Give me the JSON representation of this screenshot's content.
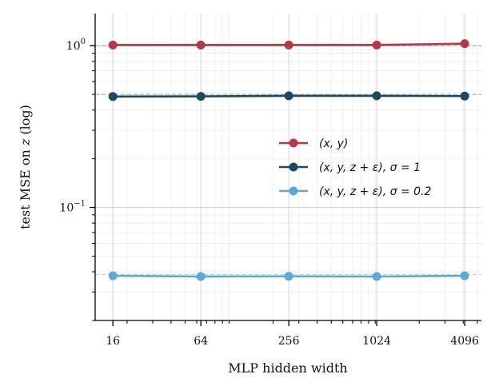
{
  "chart_data": {
    "type": "line",
    "title": "",
    "xlabel": "MLP hidden width",
    "ylabel": "test MSE on z (log)",
    "ylabel_parts": {
      "before": "test MSE on ",
      "var": "z",
      "after": " (log)"
    },
    "x_scale": "log",
    "y_scale": "log",
    "xlim": [
      12.1,
      5330
    ],
    "ylim": [
      0.02,
      1.58
    ],
    "x": [
      16,
      64,
      256,
      1024,
      4096
    ],
    "x_tick_labels": [
      "16",
      "64",
      "256",
      "1024",
      "4096"
    ],
    "y_ticks": [
      {
        "value": 1,
        "base": "10",
        "exp": "0"
      },
      {
        "value": 0.1,
        "base": "10",
        "exp": "−1"
      }
    ],
    "grid": true,
    "legend_placement": "center-right",
    "series": [
      {
        "name": "(x, y)",
        "color": "#b23a48",
        "values": [
          1.01,
          1.01,
          1.01,
          1.01,
          1.03
        ],
        "baseline": 1.0
      },
      {
        "name": "(x, y, z + ε),  σ = 1",
        "color": "#1d4863",
        "values": [
          0.485,
          0.486,
          0.49,
          0.49,
          0.488
        ],
        "baseline": 0.5
      },
      {
        "name": "(x, y, z + ε),  σ = 0.2",
        "color": "#5ea8d3",
        "values": [
          0.0378,
          0.0374,
          0.0375,
          0.0374,
          0.0378
        ],
        "baseline": 0.0385
      }
    ]
  }
}
